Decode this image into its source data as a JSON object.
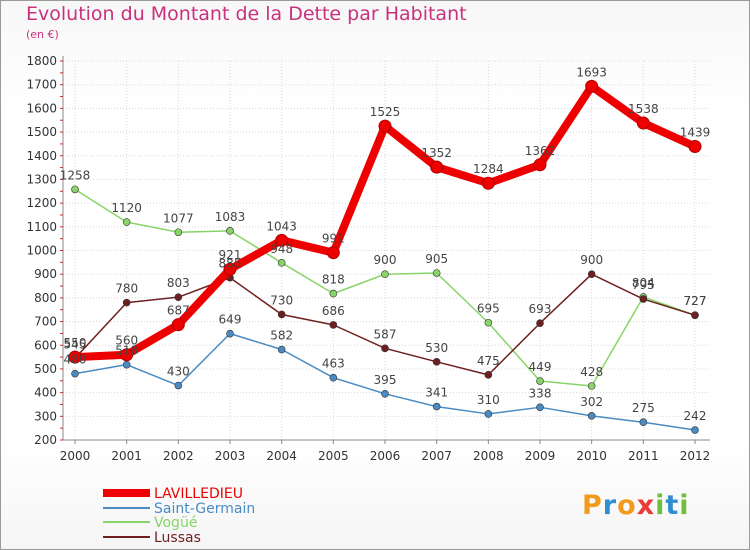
{
  "title": "Evolution du Montant de la Dette par Habitant",
  "subtitle": "(en €)",
  "logo_text": "Proxiti",
  "chart_data": {
    "type": "line",
    "x": [
      "2000",
      "2001",
      "2002",
      "2003",
      "2004",
      "2005",
      "2006",
      "2007",
      "2008",
      "2009",
      "2010",
      "2011",
      "2012"
    ],
    "ylim": [
      200,
      1800
    ],
    "yticks": [
      200,
      300,
      400,
      500,
      600,
      700,
      800,
      900,
      1000,
      1100,
      1200,
      1300,
      1400,
      1500,
      1600,
      1700,
      1800
    ],
    "grid": true,
    "legend": "bottom-left",
    "series": [
      {
        "name": "LAVILLEDIEU",
        "color": "#ee0000",
        "values": [
          550,
          560,
          687,
          921,
          1043,
          991,
          1525,
          1352,
          1284,
          1362,
          1693,
          1538,
          1439
        ],
        "labels": [
          "550",
          "560",
          "687",
          "921",
          "1043",
          "991",
          "1525",
          "1352",
          "1284",
          "1362",
          "1693",
          "1538",
          "1439"
        ]
      },
      {
        "name": "Saint-Germain",
        "color": "#4a8bc4",
        "values": [
          480,
          518,
          430,
          649,
          582,
          463,
          395,
          341,
          310,
          338,
          302,
          275,
          242
        ],
        "labels": [
          "480",
          "518",
          "430",
          "649",
          "582",
          "463",
          "395",
          "341",
          "310",
          "338",
          "302",
          "275",
          "242"
        ]
      },
      {
        "name": "Vogüé",
        "color": "#88d468",
        "values": [
          1258,
          1120,
          1077,
          1083,
          948,
          818,
          900,
          905,
          695,
          449,
          428,
          804,
          727
        ],
        "labels": [
          "1258",
          "1120",
          "1077",
          "1083",
          "948",
          "818",
          "900",
          "905",
          "695",
          "449",
          "428",
          "804",
          "727"
        ]
      },
      {
        "name": "Lussas",
        "color": "#6e1f1f",
        "values": [
          545,
          780,
          803,
          885,
          730,
          686,
          587,
          530,
          475,
          693,
          900,
          795,
          727
        ],
        "labels": [
          "545",
          "780",
          "803",
          "885",
          "730",
          "686",
          "587",
          "530",
          "475",
          "693",
          "900",
          "795",
          "727"
        ]
      }
    ]
  }
}
